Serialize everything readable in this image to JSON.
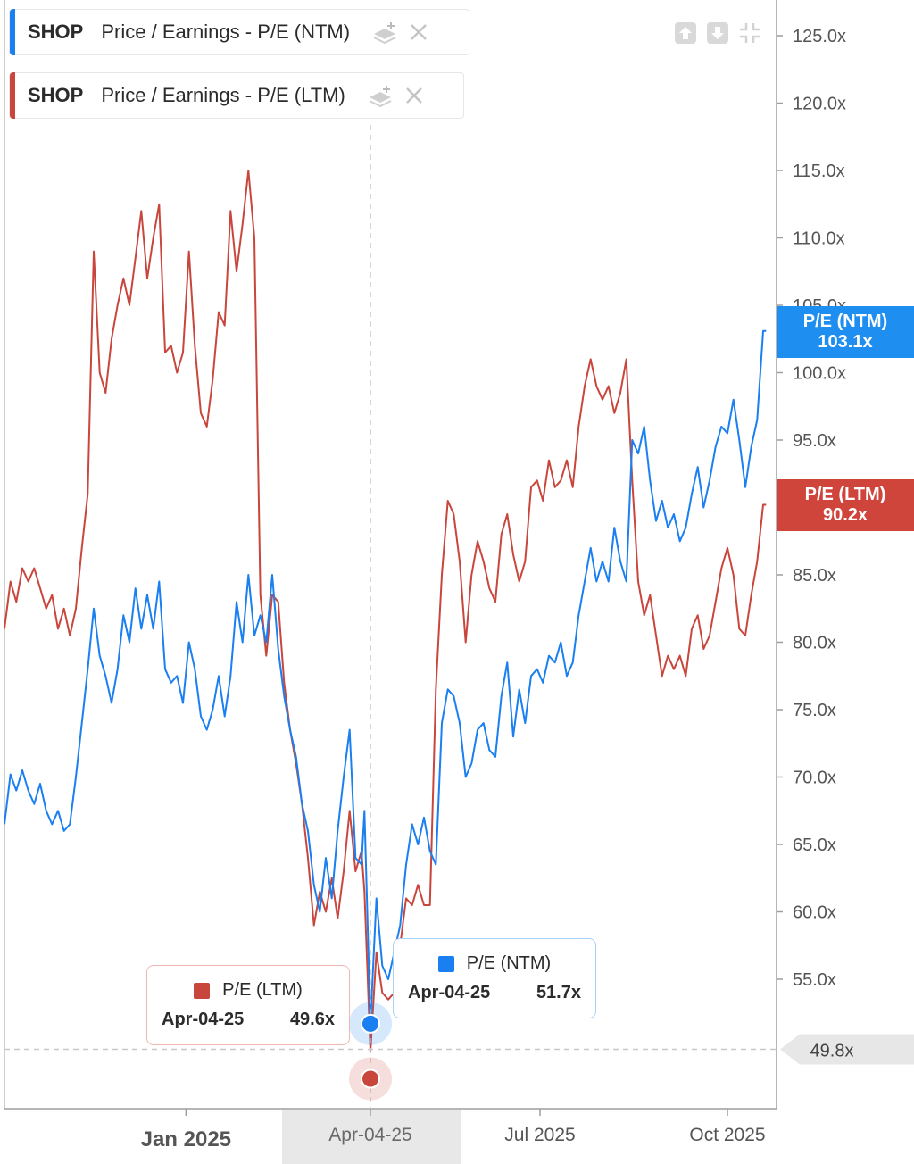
{
  "legend": [
    {
      "ticker": "SHOP",
      "metric": "Price / Earnings - P/E (NTM)",
      "color": "#1a7ff0",
      "stack_icon": "layers-add-icon",
      "close_icon": "close-icon"
    },
    {
      "ticker": "SHOP",
      "metric": "Price / Earnings - P/E (LTM)",
      "color": "#c9463d",
      "stack_icon": "layers-add-icon",
      "close_icon": "close-icon"
    }
  ],
  "controls": [
    "arrow-up-icon",
    "arrow-down-icon",
    "collapse-icon"
  ],
  "tooltips": {
    "ltm": {
      "label": "P/E (LTM)",
      "date": "Apr-04-25",
      "value": "49.6x",
      "color": "#c9463d"
    },
    "ntm": {
      "label": "P/E (NTM)",
      "date": "Apr-04-25",
      "value": "51.7x",
      "color": "#1a7ff0"
    }
  },
  "tags": {
    "ntm": {
      "label": "P/E (NTM)",
      "value": "103.1x",
      "color": "#1f8ef1"
    },
    "ltm": {
      "label": "P/E (LTM)",
      "value": "90.2x",
      "color": "#d0453b"
    },
    "crosshair": {
      "value": "49.8x"
    }
  },
  "chart_data": {
    "type": "line",
    "title": "",
    "x_unit": "trading days since Oct 01 2024",
    "x_range": [
      0,
      258
    ],
    "ylim": [
      42,
      128
    ],
    "y_ticks": [
      55,
      60,
      65,
      70,
      75,
      80,
      85,
      90,
      95,
      100,
      105,
      110,
      115,
      120,
      125
    ],
    "y_tick_labels": [
      "55.0x",
      "60.0x",
      "65.0x",
      "70.0x",
      "75.0x",
      "80.0x",
      "85.0x",
      "90.0x",
      "95.0x",
      "100.0x",
      "105.0x",
      "110.0x",
      "115.0x",
      "120.0x",
      "125.0x"
    ],
    "x_ticks": [
      {
        "x": 61,
        "label": "Jan 2025"
      },
      {
        "x": 123,
        "label": "Apr-04-25",
        "highlight": true
      },
      {
        "x": 180,
        "label": "Jul 2025"
      },
      {
        "x": 243,
        "label": "Oct 2025"
      }
    ],
    "crosshair": {
      "x": 123,
      "y": 49.8
    },
    "series": [
      {
        "name": "P/E (NTM)",
        "color": "#1a7ff0",
        "points": [
          [
            0,
            66.5
          ],
          [
            2,
            70.2
          ],
          [
            4,
            69.0
          ],
          [
            6,
            70.5
          ],
          [
            8,
            69.0
          ],
          [
            10,
            68.0
          ],
          [
            12,
            69.5
          ],
          [
            14,
            67.5
          ],
          [
            16,
            66.5
          ],
          [
            18,
            67.5
          ],
          [
            20,
            66.0
          ],
          [
            22,
            66.5
          ],
          [
            24,
            70.0
          ],
          [
            26,
            74.0
          ],
          [
            28,
            78.0
          ],
          [
            30,
            82.5
          ],
          [
            32,
            79.0
          ],
          [
            34,
            77.5
          ],
          [
            36,
            75.5
          ],
          [
            38,
            78.0
          ],
          [
            40,
            82.0
          ],
          [
            42,
            80.0
          ],
          [
            44,
            84.0
          ],
          [
            46,
            81.0
          ],
          [
            48,
            83.5
          ],
          [
            50,
            81.0
          ],
          [
            52,
            84.5
          ],
          [
            54,
            78.0
          ],
          [
            56,
            77.0
          ],
          [
            58,
            77.5
          ],
          [
            60,
            75.5
          ],
          [
            62,
            80.0
          ],
          [
            64,
            78.0
          ],
          [
            66,
            74.5
          ],
          [
            68,
            73.5
          ],
          [
            70,
            75.0
          ],
          [
            72,
            77.5
          ],
          [
            74,
            74.5
          ],
          [
            76,
            77.5
          ],
          [
            78,
            83.0
          ],
          [
            80,
            80.0
          ],
          [
            82,
            85.0
          ],
          [
            84,
            80.5
          ],
          [
            86,
            82.0
          ],
          [
            88,
            80.0
          ],
          [
            90,
            85.0
          ],
          [
            92,
            79.5
          ],
          [
            94,
            76.0
          ],
          [
            96,
            73.5
          ],
          [
            98,
            71.5
          ],
          [
            100,
            68.0
          ],
          [
            102,
            66.0
          ],
          [
            104,
            62.0
          ],
          [
            106,
            60.0
          ],
          [
            108,
            64.0
          ],
          [
            110,
            61.0
          ],
          [
            112,
            66.0
          ],
          [
            114,
            70.0
          ],
          [
            116,
            73.5
          ],
          [
            118,
            64.0
          ],
          [
            120,
            63.5
          ],
          [
            121,
            67.5
          ],
          [
            123,
            51.7
          ],
          [
            125,
            61.0
          ],
          [
            127,
            56.0
          ],
          [
            129,
            55.0
          ],
          [
            131,
            57.0
          ],
          [
            133,
            59.0
          ],
          [
            135,
            63.5
          ],
          [
            137,
            66.5
          ],
          [
            139,
            65.0
          ],
          [
            141,
            67.0
          ],
          [
            143,
            64.5
          ],
          [
            145,
            63.5
          ],
          [
            147,
            74.0
          ],
          [
            149,
            76.5
          ],
          [
            151,
            76.0
          ],
          [
            153,
            74.0
          ],
          [
            155,
            70.0
          ],
          [
            157,
            71.0
          ],
          [
            159,
            73.5
          ],
          [
            161,
            74.0
          ],
          [
            163,
            72.0
          ],
          [
            165,
            71.5
          ],
          [
            167,
            76.0
          ],
          [
            169,
            78.5
          ],
          [
            171,
            73.0
          ],
          [
            173,
            76.5
          ],
          [
            175,
            74.0
          ],
          [
            177,
            77.5
          ],
          [
            179,
            78.0
          ],
          [
            181,
            77.0
          ],
          [
            183,
            79.0
          ],
          [
            185,
            78.5
          ],
          [
            187,
            80.0
          ],
          [
            189,
            77.5
          ],
          [
            191,
            78.5
          ],
          [
            193,
            82.0
          ],
          [
            195,
            84.5
          ],
          [
            197,
            87.0
          ],
          [
            199,
            84.5
          ],
          [
            201,
            86.0
          ],
          [
            203,
            84.5
          ],
          [
            205,
            88.5
          ],
          [
            207,
            86.0
          ],
          [
            209,
            84.5
          ],
          [
            211,
            95.0
          ],
          [
            213,
            94.0
          ],
          [
            215,
            96.0
          ],
          [
            217,
            92.0
          ],
          [
            219,
            89.0
          ],
          [
            221,
            90.5
          ],
          [
            223,
            88.5
          ],
          [
            225,
            89.5
          ],
          [
            227,
            87.5
          ],
          [
            229,
            88.5
          ],
          [
            231,
            91.0
          ],
          [
            233,
            93.0
          ],
          [
            235,
            90.0
          ],
          [
            237,
            92.0
          ],
          [
            239,
            94.5
          ],
          [
            241,
            96.0
          ],
          [
            243,
            95.5
          ],
          [
            245,
            98.0
          ],
          [
            247,
            95.0
          ],
          [
            249,
            91.5
          ],
          [
            251,
            94.5
          ],
          [
            253,
            96.5
          ],
          [
            255,
            103.1
          ],
          [
            256,
            103.1
          ]
        ]
      },
      {
        "name": "P/E (LTM)",
        "color": "#c9463d",
        "points": [
          [
            0,
            81.0
          ],
          [
            2,
            84.5
          ],
          [
            4,
            83.0
          ],
          [
            6,
            85.5
          ],
          [
            8,
            84.5
          ],
          [
            10,
            85.5
          ],
          [
            12,
            84.0
          ],
          [
            14,
            82.5
          ],
          [
            16,
            83.5
          ],
          [
            18,
            81.0
          ],
          [
            20,
            82.5
          ],
          [
            22,
            80.5
          ],
          [
            24,
            82.5
          ],
          [
            26,
            87.0
          ],
          [
            28,
            91.0
          ],
          [
            30,
            109.0
          ],
          [
            32,
            100.0
          ],
          [
            34,
            98.5
          ],
          [
            36,
            102.5
          ],
          [
            38,
            105.0
          ],
          [
            40,
            107.0
          ],
          [
            42,
            105.0
          ],
          [
            44,
            108.5
          ],
          [
            46,
            112.0
          ],
          [
            48,
            107.0
          ],
          [
            50,
            110.0
          ],
          [
            52,
            112.5
          ],
          [
            54,
            101.5
          ],
          [
            56,
            102.0
          ],
          [
            58,
            100.0
          ],
          [
            60,
            101.5
          ],
          [
            62,
            109.0
          ],
          [
            64,
            102.0
          ],
          [
            66,
            97.0
          ],
          [
            68,
            96.0
          ],
          [
            70,
            99.5
          ],
          [
            72,
            104.5
          ],
          [
            74,
            103.5
          ],
          [
            76,
            112.0
          ],
          [
            78,
            107.5
          ],
          [
            80,
            111.0
          ],
          [
            82,
            115.0
          ],
          [
            84,
            110.0
          ],
          [
            86,
            83.5
          ],
          [
            88,
            79.0
          ],
          [
            90,
            83.5
          ],
          [
            92,
            83.0
          ],
          [
            94,
            77.0
          ],
          [
            96,
            73.5
          ],
          [
            98,
            71.0
          ],
          [
            100,
            68.0
          ],
          [
            102,
            64.0
          ],
          [
            104,
            59.0
          ],
          [
            106,
            61.5
          ],
          [
            108,
            60.0
          ],
          [
            110,
            62.5
          ],
          [
            112,
            59.5
          ],
          [
            114,
            63.0
          ],
          [
            116,
            67.5
          ],
          [
            118,
            63.0
          ],
          [
            120,
            64.5
          ],
          [
            121,
            61.5
          ],
          [
            123,
            49.6
          ],
          [
            125,
            57.0
          ],
          [
            127,
            54.0
          ],
          [
            129,
            53.5
          ],
          [
            131,
            54.0
          ],
          [
            133,
            57.5
          ],
          [
            135,
            61.0
          ],
          [
            137,
            60.5
          ],
          [
            139,
            62.0
          ],
          [
            141,
            60.5
          ],
          [
            143,
            60.5
          ],
          [
            145,
            76.5
          ],
          [
            147,
            85.0
          ],
          [
            149,
            90.5
          ],
          [
            151,
            89.5
          ],
          [
            153,
            86.0
          ],
          [
            155,
            80.0
          ],
          [
            157,
            85.0
          ],
          [
            159,
            87.5
          ],
          [
            161,
            86.0
          ],
          [
            163,
            84.0
          ],
          [
            165,
            83.0
          ],
          [
            167,
            88.0
          ],
          [
            169,
            89.5
          ],
          [
            171,
            86.5
          ],
          [
            173,
            84.5
          ],
          [
            175,
            86.0
          ],
          [
            177,
            91.5
          ],
          [
            179,
            92.0
          ],
          [
            181,
            90.5
          ],
          [
            183,
            93.5
          ],
          [
            185,
            91.5
          ],
          [
            187,
            92.0
          ],
          [
            189,
            93.5
          ],
          [
            191,
            91.5
          ],
          [
            193,
            96.0
          ],
          [
            195,
            99.0
          ],
          [
            197,
            101.0
          ],
          [
            199,
            99.0
          ],
          [
            201,
            98.0
          ],
          [
            203,
            99.0
          ],
          [
            205,
            97.0
          ],
          [
            207,
            98.5
          ],
          [
            209,
            101.0
          ],
          [
            211,
            92.0
          ],
          [
            213,
            84.5
          ],
          [
            215,
            82.0
          ],
          [
            217,
            83.5
          ],
          [
            219,
            80.5
          ],
          [
            221,
            77.5
          ],
          [
            223,
            79.0
          ],
          [
            225,
            78.0
          ],
          [
            227,
            79.0
          ],
          [
            229,
            77.5
          ],
          [
            231,
            81.0
          ],
          [
            233,
            82.0
          ],
          [
            235,
            79.5
          ],
          [
            237,
            80.5
          ],
          [
            239,
            83.0
          ],
          [
            241,
            85.5
          ],
          [
            243,
            87.0
          ],
          [
            245,
            85.0
          ],
          [
            247,
            81.0
          ],
          [
            249,
            80.5
          ],
          [
            251,
            83.5
          ],
          [
            253,
            86.0
          ],
          [
            255,
            90.2
          ],
          [
            256,
            90.2
          ]
        ]
      }
    ]
  }
}
